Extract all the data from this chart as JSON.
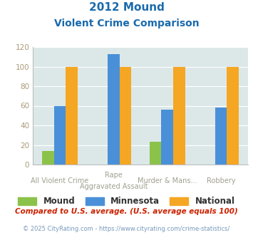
{
  "title_line1": "2012 Mound",
  "title_line2": "Violent Crime Comparison",
  "cat_labels_top": [
    "",
    "Rape",
    "",
    ""
  ],
  "cat_labels_bottom": [
    "All Violent Crime",
    "Aggravated Assault",
    "Murder & Mans...",
    "Robbery"
  ],
  "mound_values": [
    14,
    0,
    23,
    0
  ],
  "minnesota_values": [
    60,
    113,
    56,
    58
  ],
  "national_values": [
    100,
    100,
    100,
    100
  ],
  "mound_color": "#8bc34a",
  "minnesota_color": "#4a90d9",
  "national_color": "#f5a623",
  "ylim": [
    0,
    120
  ],
  "yticks": [
    0,
    20,
    40,
    60,
    80,
    100,
    120
  ],
  "background_color": "#dce8e8",
  "title_color": "#1a6aad",
  "label_color": "#a0a090",
  "footer_text": "Compared to U.S. average. (U.S. average equals 100)",
  "copyright_text": "© 2025 CityRating.com - https://www.cityrating.com/crime-statistics/",
  "footer_color": "#cc2200",
  "copyright_color": "#7799bb",
  "legend_label_color": "#333333",
  "ytick_color": "#aa9977"
}
